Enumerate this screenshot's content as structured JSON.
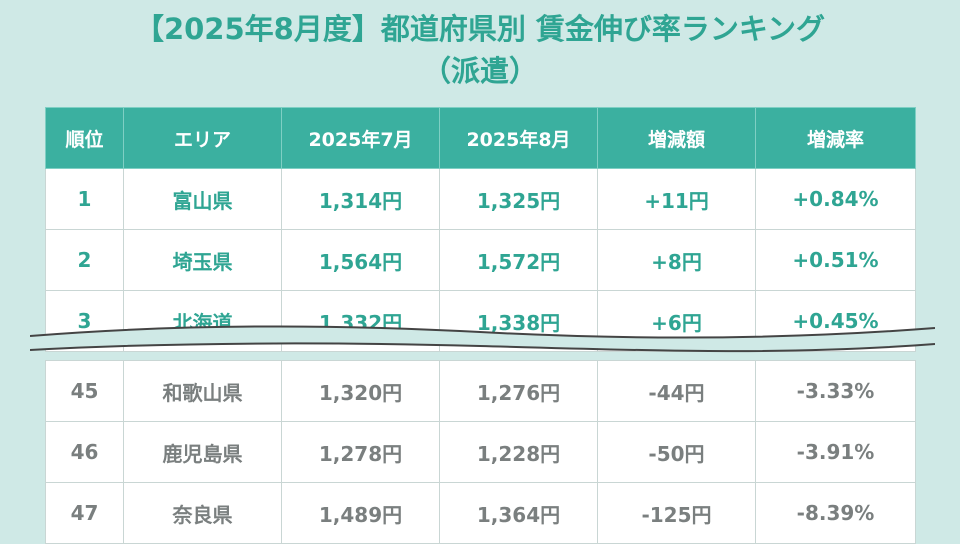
{
  "title": {
    "main": "【2025年8月度】都道府県別 賃金伸び率ランキング",
    "sub": "（派遣）"
  },
  "table": {
    "headers": [
      "順位",
      "エリア",
      "2025年7月",
      "2025年8月",
      "増減額",
      "増減率"
    ],
    "top_rows": [
      [
        "1",
        "富山県",
        "1,314円",
        "1,325円",
        "+11円",
        "+0.84%"
      ],
      [
        "2",
        "埼玉県",
        "1,564円",
        "1,572円",
        "+8円",
        "+0.51%"
      ],
      [
        "3",
        "北海道",
        "1,332円",
        "1,338円",
        "+6円",
        "+0.45%"
      ]
    ],
    "bottom_rows": [
      [
        "45",
        "和歌山県",
        "1,320円",
        "1,276円",
        "-44円",
        "-3.33%"
      ],
      [
        "46",
        "鹿児島県",
        "1,278円",
        "1,228円",
        "-50円",
        "-3.91%"
      ],
      [
        "47",
        "奈良県",
        "1,489円",
        "1,364円",
        "-125円",
        "-8.39%"
      ]
    ]
  },
  "colors": {
    "accent": "#2fa593",
    "header_bg": "#3bb0a0",
    "page_bg": "#cfe9e6",
    "muted_text": "#7a7f7f"
  }
}
